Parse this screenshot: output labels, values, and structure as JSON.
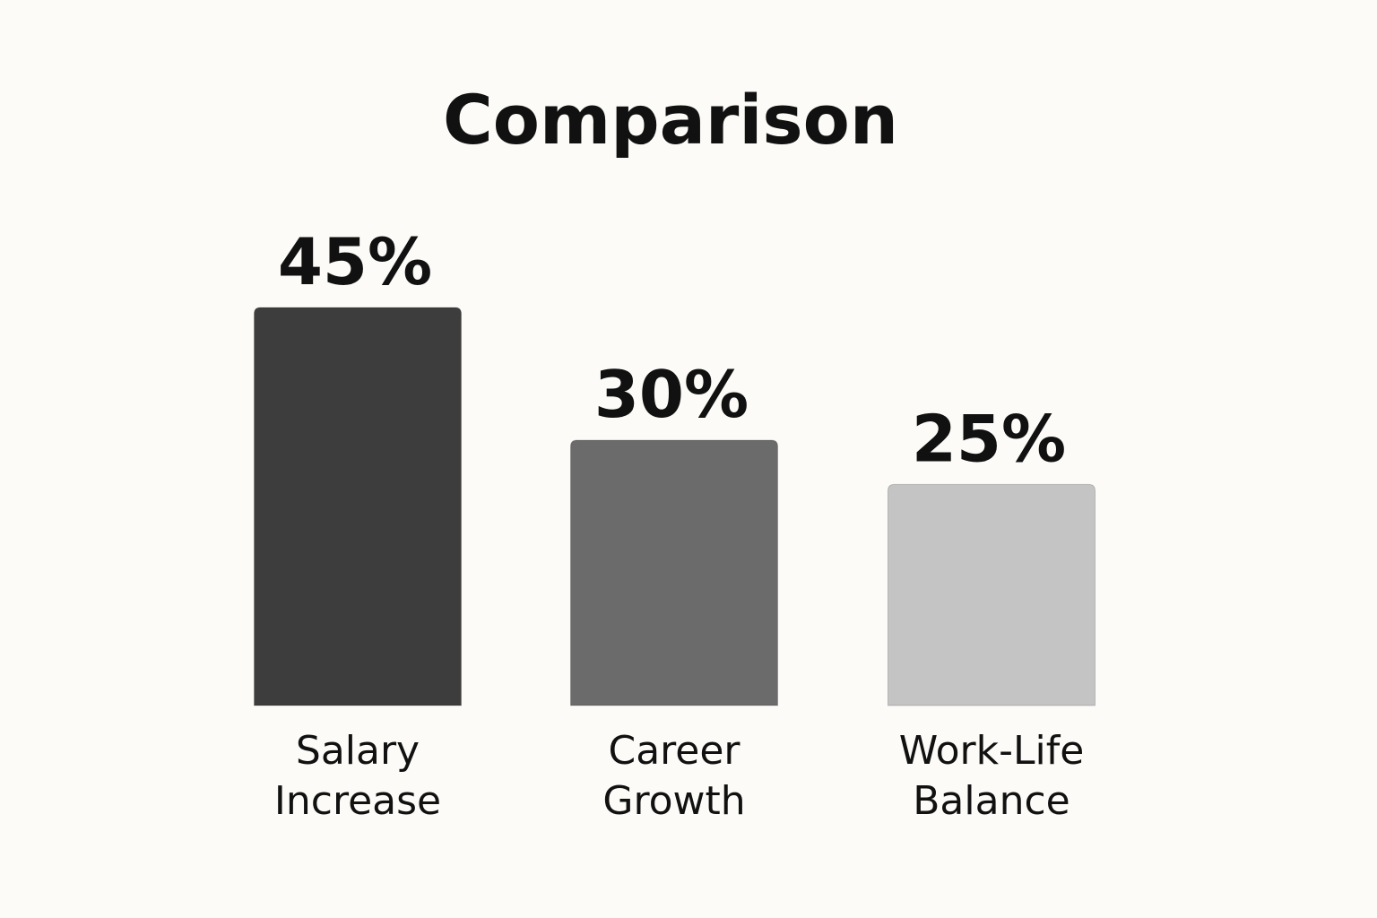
{
  "chart_data": {
    "type": "bar",
    "title": "Comparison",
    "categories": [
      "Salary Increase",
      "Career Growth",
      "Work-Life Balance"
    ],
    "category_lines": [
      [
        "Salary",
        "Increase"
      ],
      [
        "Career",
        "Growth"
      ],
      [
        "Work-Life",
        "Balance"
      ]
    ],
    "values": [
      45,
      30,
      25
    ],
    "value_labels": [
      "45%",
      "30%",
      "25%"
    ],
    "unit": "%",
    "bar_colors": [
      "#3d3d3d",
      "#6b6b6b",
      "#c4c4c4"
    ],
    "grid": false,
    "legend": "none"
  }
}
